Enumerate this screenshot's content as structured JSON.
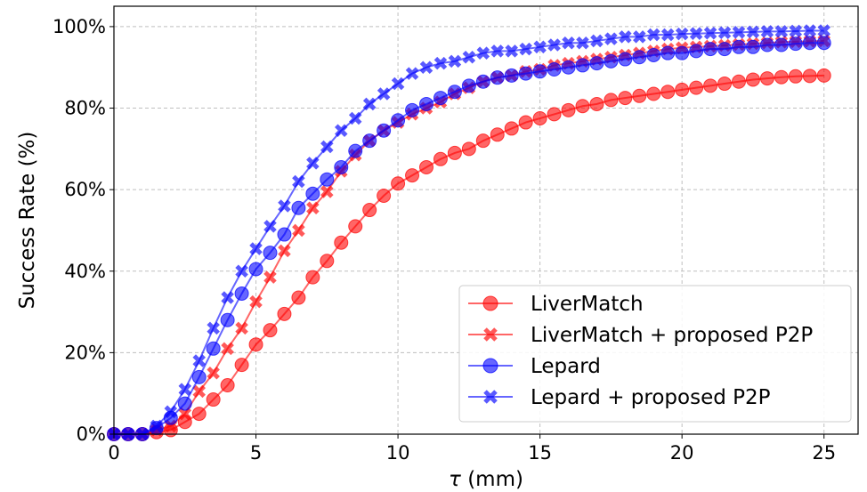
{
  "chart_data": {
    "type": "line",
    "xlabel_symbol": "τ",
    "xlabel_unit": "(mm)",
    "ylabel": "Success Rate (%)",
    "xlim": [
      0,
      26.2
    ],
    "ylim": [
      0,
      1.05
    ],
    "xticks": [
      0,
      5,
      10,
      15,
      20,
      25
    ],
    "xtick_labels": [
      "0",
      "5",
      "10",
      "15",
      "20",
      "25"
    ],
    "yticks": [
      0,
      0.2,
      0.4,
      0.6,
      0.8,
      1.0
    ],
    "ytick_labels": [
      "0%",
      "20%",
      "40%",
      "60%",
      "80%",
      "100%"
    ],
    "grid": true,
    "legend_position": "lower-right",
    "x": [
      0,
      0.5,
      1.0,
      1.5,
      2.0,
      2.5,
      3.0,
      3.5,
      4.0,
      4.5,
      5.0,
      5.5,
      6.0,
      6.5,
      7.0,
      7.5,
      8.0,
      8.5,
      9.0,
      9.5,
      10.0,
      10.5,
      11.0,
      11.5,
      12.0,
      12.5,
      13.0,
      13.5,
      14.0,
      14.5,
      15.0,
      15.5,
      16.0,
      16.5,
      17.0,
      17.5,
      18.0,
      18.5,
      19.0,
      19.5,
      20.0,
      20.5,
      21.0,
      21.5,
      22.0,
      22.5,
      23.0,
      23.5,
      24.0,
      24.5,
      25.0
    ],
    "series": [
      {
        "name": "LiverMatch",
        "color": "#ff0000",
        "marker": "circle",
        "values": [
          0.0,
          0.0,
          0.0,
          0.005,
          0.01,
          0.03,
          0.05,
          0.085,
          0.12,
          0.17,
          0.22,
          0.255,
          0.295,
          0.335,
          0.385,
          0.425,
          0.47,
          0.51,
          0.55,
          0.585,
          0.615,
          0.635,
          0.655,
          0.675,
          0.69,
          0.7,
          0.72,
          0.735,
          0.75,
          0.765,
          0.775,
          0.785,
          0.795,
          0.805,
          0.81,
          0.82,
          0.825,
          0.83,
          0.835,
          0.84,
          0.845,
          0.85,
          0.855,
          0.86,
          0.865,
          0.87,
          0.873,
          0.876,
          0.878,
          0.879,
          0.88
        ]
      },
      {
        "name": "LiverMatch + proposed P2P",
        "color": "#ff0000",
        "marker": "x",
        "values": [
          0.0,
          0.0,
          0.0,
          0.01,
          0.02,
          0.05,
          0.105,
          0.15,
          0.21,
          0.26,
          0.325,
          0.385,
          0.45,
          0.5,
          0.555,
          0.595,
          0.645,
          0.685,
          0.72,
          0.745,
          0.765,
          0.785,
          0.8,
          0.815,
          0.835,
          0.85,
          0.865,
          0.875,
          0.88,
          0.89,
          0.895,
          0.905,
          0.91,
          0.915,
          0.92,
          0.925,
          0.93,
          0.935,
          0.94,
          0.945,
          0.948,
          0.95,
          0.952,
          0.954,
          0.956,
          0.958,
          0.96,
          0.962,
          0.963,
          0.964,
          0.965
        ]
      },
      {
        "name": "Lepard",
        "color": "#0000ff",
        "marker": "circle",
        "values": [
          0.0,
          0.0,
          0.0,
          0.015,
          0.04,
          0.075,
          0.14,
          0.21,
          0.28,
          0.345,
          0.405,
          0.445,
          0.49,
          0.555,
          0.59,
          0.625,
          0.655,
          0.695,
          0.72,
          0.745,
          0.77,
          0.795,
          0.81,
          0.825,
          0.84,
          0.855,
          0.865,
          0.875,
          0.88,
          0.885,
          0.89,
          0.895,
          0.9,
          0.905,
          0.91,
          0.915,
          0.92,
          0.925,
          0.93,
          0.935,
          0.935,
          0.94,
          0.945,
          0.945,
          0.95,
          0.95,
          0.955,
          0.955,
          0.958,
          0.96,
          0.96
        ]
      },
      {
        "name": "Lepard + proposed P2P",
        "color": "#0000ff",
        "marker": "x",
        "values": [
          0.0,
          0.0,
          0.0,
          0.02,
          0.055,
          0.11,
          0.18,
          0.26,
          0.335,
          0.4,
          0.455,
          0.51,
          0.56,
          0.62,
          0.665,
          0.705,
          0.745,
          0.775,
          0.81,
          0.835,
          0.86,
          0.885,
          0.9,
          0.91,
          0.915,
          0.925,
          0.935,
          0.94,
          0.94,
          0.945,
          0.95,
          0.955,
          0.96,
          0.96,
          0.965,
          0.97,
          0.975,
          0.975,
          0.98,
          0.98,
          0.982,
          0.983,
          0.984,
          0.985,
          0.986,
          0.987,
          0.988,
          0.988,
          0.989,
          0.99,
          0.99
        ]
      }
    ]
  }
}
